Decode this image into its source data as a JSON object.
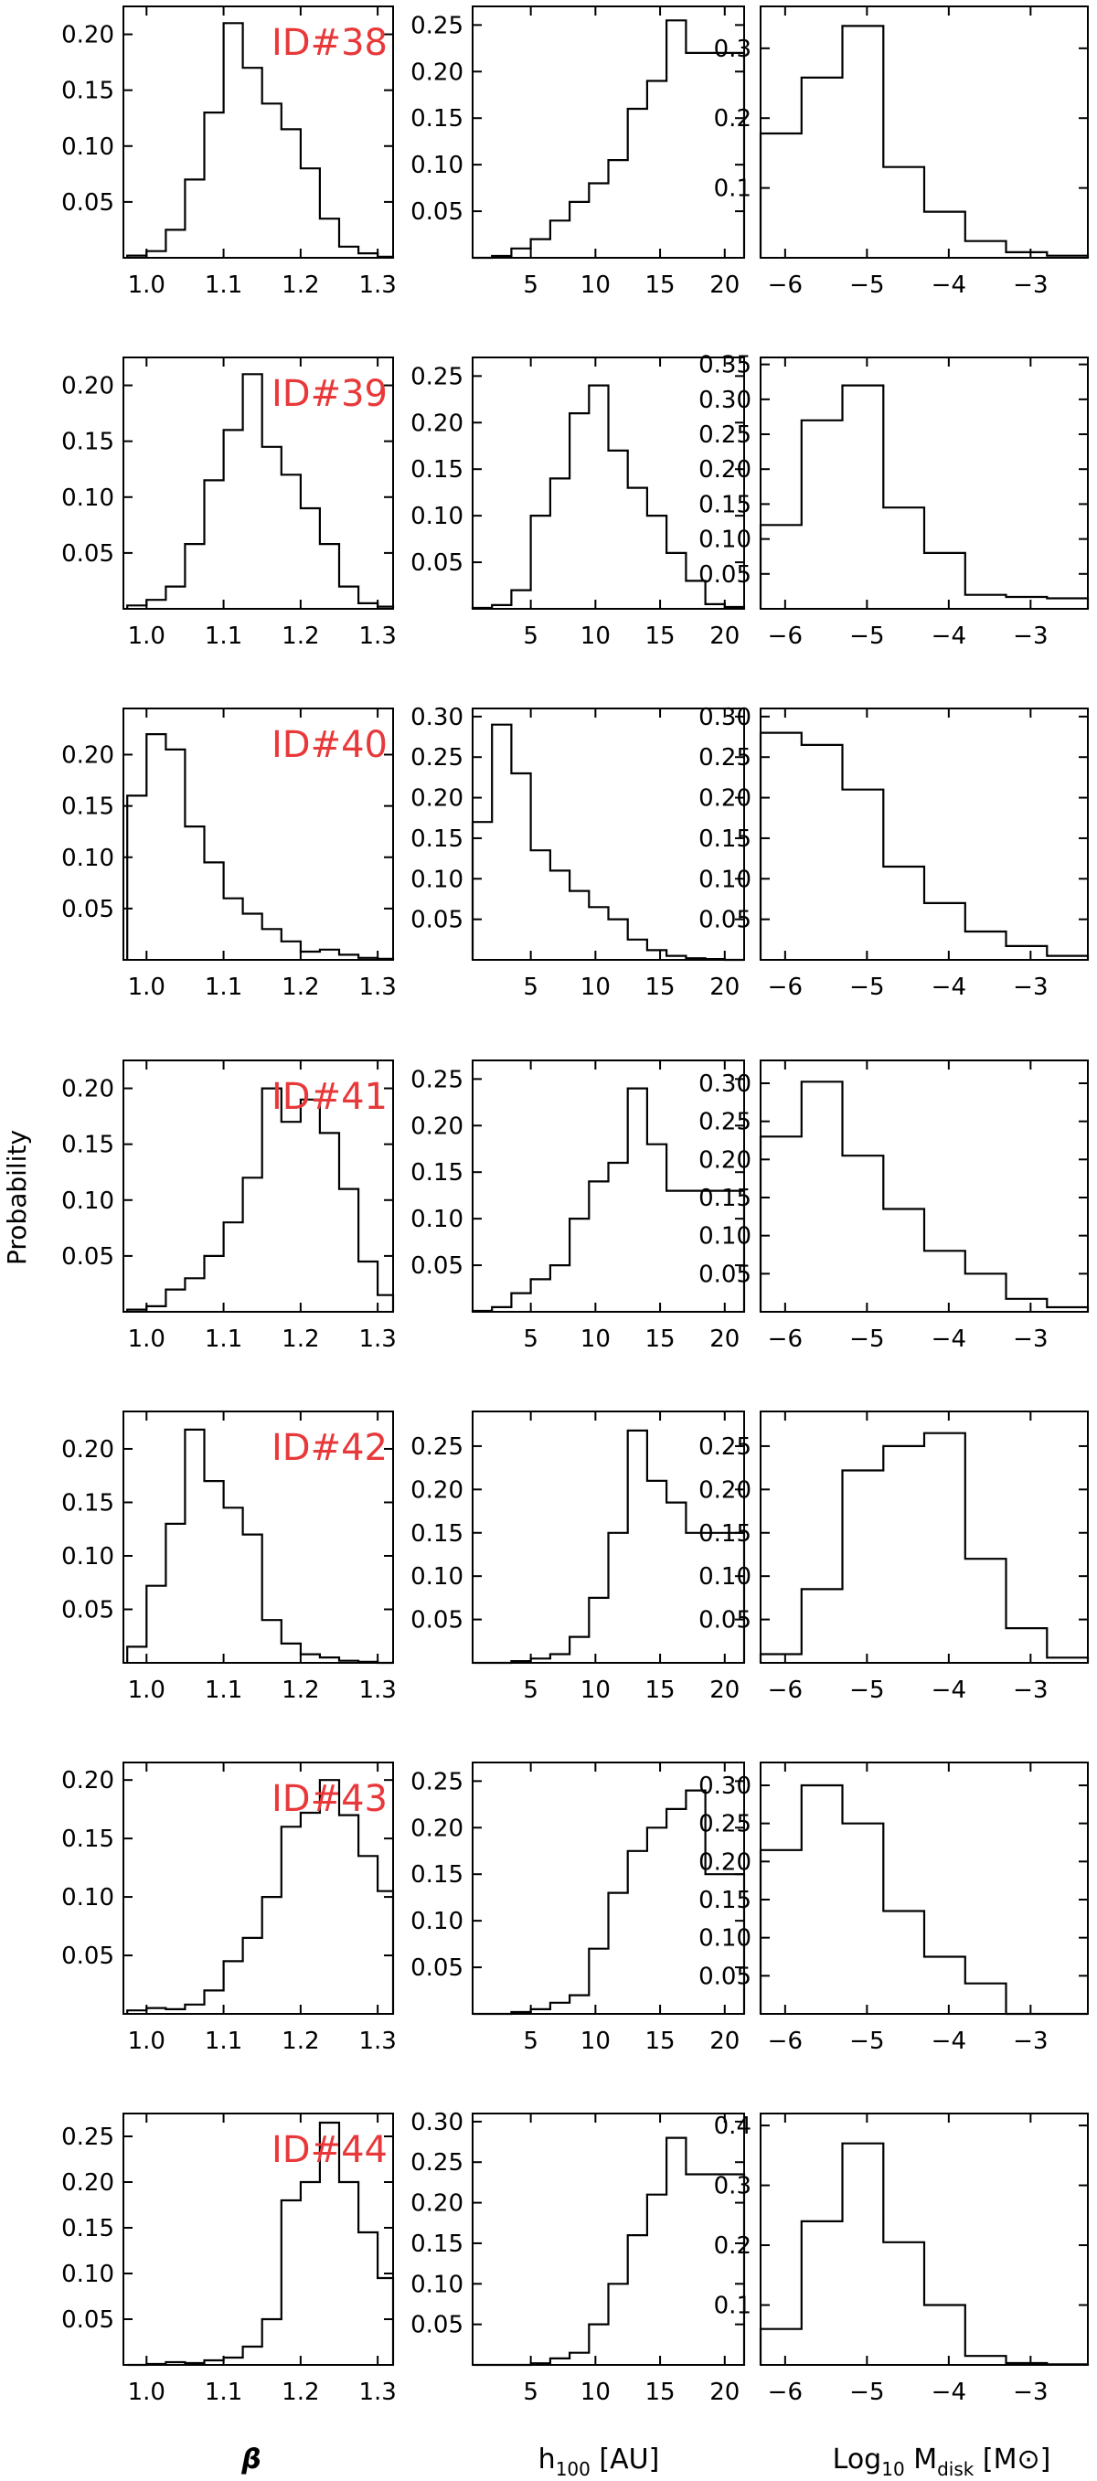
{
  "ylabel": "Probability",
  "xlabels": {
    "beta": "β",
    "h100_main": "h",
    "h100_sub": "100",
    "h100_unit": " [AU]",
    "mdisk_pre": "Log",
    "mdisk_pre_sub": "10",
    "mdisk_main": " M",
    "mdisk_sub": "disk",
    "mdisk_unit": " [M⊙]"
  },
  "chart_data": {
    "type": "bar",
    "columns": [
      {
        "key": "beta",
        "xlim": [
          0.97,
          1.32
        ],
        "xticks": [
          1.0,
          1.1,
          1.2,
          1.3
        ],
        "xtick_labels": [
          "1.0",
          "1.1",
          "1.2",
          "1.3"
        ],
        "bin_edges": [
          0.975,
          1.0,
          1.025,
          1.05,
          1.075,
          1.1,
          1.125,
          1.15,
          1.175,
          1.2,
          1.225,
          1.25,
          1.275,
          1.3,
          1.32
        ]
      },
      {
        "key": "h100",
        "xlim": [
          0.5,
          21.5
        ],
        "xticks": [
          5,
          10,
          15,
          20
        ],
        "xtick_labels": [
          "5",
          "10",
          "15",
          "20"
        ],
        "bin_edges": [
          0.5,
          2.0,
          3.5,
          5.0,
          6.5,
          8.0,
          9.5,
          11.0,
          12.5,
          14.0,
          15.5,
          17.0,
          18.5,
          20.0,
          21.5
        ]
      },
      {
        "key": "mdisk",
        "xlim": [
          -6.3,
          -2.3
        ],
        "xticks": [
          -6,
          -5,
          -4,
          -3
        ],
        "xtick_labels": [
          "−6",
          "−5",
          "−4",
          "−3"
        ],
        "bin_edges": [
          -6.3,
          -5.8,
          -5.3,
          -4.8,
          -4.3,
          -3.8,
          -3.3,
          -2.8,
          -2.3
        ]
      }
    ],
    "rows": [
      {
        "id": "ID#38",
        "panels": [
          {
            "ylim": [
              0,
              0.225
            ],
            "yticks": [
              0.05,
              0.1,
              0.15,
              0.2
            ],
            "ytick_labels": [
              "0.05",
              "0.10",
              "0.15",
              "0.20"
            ],
            "values": [
              0.002,
              0.006,
              0.025,
              0.07,
              0.13,
              0.21,
              0.17,
              0.138,
              0.115,
              0.08,
              0.035,
              0.01,
              0.004,
              0.001
            ]
          },
          {
            "ylim": [
              0,
              0.27
            ],
            "yticks": [
              0.05,
              0.1,
              0.15,
              0.2,
              0.25
            ],
            "ytick_labels": [
              "0.05",
              "0.10",
              "0.15",
              "0.20",
              "0.25"
            ],
            "values": [
              0.0,
              0.002,
              0.01,
              0.02,
              0.04,
              0.06,
              0.08,
              0.105,
              0.16,
              0.19,
              0.255,
              0.22,
              0.22,
              0.22
            ]
          },
          {
            "ylim": [
              0,
              0.36
            ],
            "yticks": [
              0.1,
              0.2,
              0.3
            ],
            "ytick_labels": [
              "0.1",
              "0.2",
              "0.3"
            ],
            "values": [
              0.178,
              0.258,
              0.332,
              0.13,
              0.066,
              0.024,
              0.008,
              0.003
            ]
          }
        ]
      },
      {
        "id": "ID#39",
        "panels": [
          {
            "ylim": [
              0,
              0.225
            ],
            "yticks": [
              0.05,
              0.1,
              0.15,
              0.2
            ],
            "ytick_labels": [
              "0.05",
              "0.10",
              "0.15",
              "0.20"
            ],
            "values": [
              0.003,
              0.008,
              0.02,
              0.058,
              0.115,
              0.16,
              0.21,
              0.145,
              0.12,
              0.09,
              0.058,
              0.02,
              0.005,
              0.002
            ]
          },
          {
            "ylim": [
              0,
              0.27
            ],
            "yticks": [
              0.05,
              0.1,
              0.15,
              0.2,
              0.25
            ],
            "ytick_labels": [
              "0.05",
              "0.10",
              "0.15",
              "0.20",
              "0.25"
            ],
            "values": [
              0.001,
              0.004,
              0.02,
              0.1,
              0.14,
              0.21,
              0.24,
              0.17,
              0.13,
              0.1,
              0.06,
              0.03,
              0.005,
              0.002
            ]
          },
          {
            "ylim": [
              0,
              0.36
            ],
            "yticks": [
              0.05,
              0.1,
              0.15,
              0.2,
              0.25,
              0.3,
              0.35
            ],
            "ytick_labels": [
              "0.05",
              "0.10",
              "0.15",
              "0.20",
              "0.25",
              "0.30",
              "0.35"
            ],
            "values": [
              0.12,
              0.27,
              0.32,
              0.145,
              0.08,
              0.02,
              0.017,
              0.015
            ]
          }
        ]
      },
      {
        "id": "ID#40",
        "panels": [
          {
            "ylim": [
              0,
              0.245
            ],
            "yticks": [
              0.05,
              0.1,
              0.15,
              0.2
            ],
            "ytick_labels": [
              "0.05",
              "0.10",
              "0.15",
              "0.20"
            ],
            "values": [
              0.16,
              0.22,
              0.205,
              0.13,
              0.095,
              0.06,
              0.045,
              0.03,
              0.018,
              0.008,
              0.01,
              0.005,
              0.002,
              0.001
            ]
          },
          {
            "ylim": [
              0,
              0.31
            ],
            "yticks": [
              0.05,
              0.1,
              0.15,
              0.2,
              0.25,
              0.3
            ],
            "ytick_labels": [
              "0.05",
              "0.10",
              "0.15",
              "0.20",
              "0.25",
              "0.30"
            ],
            "values": [
              0.17,
              0.29,
              0.23,
              0.135,
              0.11,
              0.085,
              0.065,
              0.05,
              0.025,
              0.012,
              0.005,
              0.002,
              0.001,
              0.0
            ]
          },
          {
            "ylim": [
              0,
              0.31
            ],
            "yticks": [
              0.05,
              0.1,
              0.15,
              0.2,
              0.25,
              0.3
            ],
            "ytick_labels": [
              "0.05",
              "0.10",
              "0.15",
              "0.20",
              "0.25",
              "0.30"
            ],
            "values": [
              0.28,
              0.265,
              0.21,
              0.115,
              0.07,
              0.035,
              0.017,
              0.005
            ]
          }
        ]
      },
      {
        "id": "ID#41",
        "panels": [
          {
            "ylim": [
              0,
              0.225
            ],
            "yticks": [
              0.05,
              0.1,
              0.15,
              0.2
            ],
            "ytick_labels": [
              "0.05",
              "0.10",
              "0.15",
              "0.20"
            ],
            "values": [
              0.002,
              0.005,
              0.02,
              0.03,
              0.05,
              0.08,
              0.12,
              0.2,
              0.17,
              0.19,
              0.16,
              0.11,
              0.045,
              0.015
            ]
          },
          {
            "ylim": [
              0,
              0.27
            ],
            "yticks": [
              0.05,
              0.1,
              0.15,
              0.2,
              0.25
            ],
            "ytick_labels": [
              "0.05",
              "0.10",
              "0.15",
              "0.20",
              "0.25"
            ],
            "values": [
              0.001,
              0.005,
              0.02,
              0.035,
              0.05,
              0.1,
              0.14,
              0.16,
              0.24,
              0.18,
              0.13,
              0.13,
              0.13,
              0.13
            ]
          },
          {
            "ylim": [
              0,
              0.33
            ],
            "yticks": [
              0.05,
              0.1,
              0.15,
              0.2,
              0.25,
              0.3
            ],
            "ytick_labels": [
              "0.05",
              "0.10",
              "0.15",
              "0.20",
              "0.25",
              "0.30"
            ],
            "values": [
              0.23,
              0.302,
              0.205,
              0.135,
              0.08,
              0.05,
              0.017,
              0.006
            ]
          }
        ]
      },
      {
        "id": "ID#42",
        "panels": [
          {
            "ylim": [
              0,
              0.235
            ],
            "yticks": [
              0.05,
              0.1,
              0.15,
              0.2
            ],
            "ytick_labels": [
              "0.05",
              "0.10",
              "0.15",
              "0.20"
            ],
            "values": [
              0.015,
              0.072,
              0.13,
              0.218,
              0.17,
              0.145,
              0.12,
              0.04,
              0.018,
              0.008,
              0.005,
              0.002,
              0.001,
              0.0
            ]
          },
          {
            "ylim": [
              0,
              0.29
            ],
            "yticks": [
              0.05,
              0.1,
              0.15,
              0.2,
              0.25
            ],
            "ytick_labels": [
              "0.05",
              "0.10",
              "0.15",
              "0.20",
              "0.25"
            ],
            "values": [
              0.0,
              0.0,
              0.002,
              0.005,
              0.01,
              0.03,
              0.075,
              0.15,
              0.268,
              0.21,
              0.185,
              0.15,
              0.15,
              0.15
            ]
          },
          {
            "ylim": [
              0,
              0.29
            ],
            "yticks": [
              0.05,
              0.1,
              0.15,
              0.2,
              0.25
            ],
            "ytick_labels": [
              "0.05",
              "0.10",
              "0.15",
              "0.20",
              "0.25"
            ],
            "values": [
              0.01,
              0.085,
              0.222,
              0.25,
              0.265,
              0.12,
              0.04,
              0.006
            ]
          }
        ]
      },
      {
        "id": "ID#43",
        "panels": [
          {
            "ylim": [
              0,
              0.215
            ],
            "yticks": [
              0.05,
              0.1,
              0.15,
              0.2
            ],
            "ytick_labels": [
              "0.05",
              "0.10",
              "0.15",
              "0.20"
            ],
            "values": [
              0.003,
              0.005,
              0.004,
              0.008,
              0.02,
              0.045,
              0.065,
              0.1,
              0.16,
              0.172,
              0.2,
              0.17,
              0.135,
              0.105
            ]
          },
          {
            "ylim": [
              0,
              0.27
            ],
            "yticks": [
              0.05,
              0.1,
              0.15,
              0.2,
              0.25
            ],
            "ytick_labels": [
              "0.05",
              "0.10",
              "0.15",
              "0.20",
              "0.25"
            ],
            "values": [
              0.0,
              0.0,
              0.002,
              0.005,
              0.012,
              0.02,
              0.07,
              0.13,
              0.175,
              0.2,
              0.22,
              0.24,
              0.15,
              0.15
            ]
          },
          {
            "ylim": [
              0,
              0.33
            ],
            "yticks": [
              0.05,
              0.1,
              0.15,
              0.2,
              0.25,
              0.3
            ],
            "ytick_labels": [
              "0.05",
              "0.10",
              "0.15",
              "0.20",
              "0.25",
              "0.30"
            ],
            "values": [
              0.215,
              0.3,
              0.25,
              0.135,
              0.075,
              0.04,
              0.0,
              0.0
            ]
          }
        ]
      },
      {
        "id": "ID#44",
        "panels": [
          {
            "ylim": [
              0,
              0.275
            ],
            "yticks": [
              0.05,
              0.1,
              0.15,
              0.2,
              0.25
            ],
            "ytick_labels": [
              "0.05",
              "0.10",
              "0.15",
              "0.20",
              "0.25"
            ],
            "values": [
              0.0,
              0.001,
              0.003,
              0.002,
              0.005,
              0.008,
              0.02,
              0.05,
              0.18,
              0.2,
              0.265,
              0.2,
              0.145,
              0.095
            ]
          },
          {
            "ylim": [
              0,
              0.31
            ],
            "yticks": [
              0.05,
              0.1,
              0.15,
              0.2,
              0.25,
              0.3
            ],
            "ytick_labels": [
              "0.05",
              "0.10",
              "0.15",
              "0.20",
              "0.25",
              "0.30"
            ],
            "values": [
              0.0,
              0.0,
              0.0,
              0.002,
              0.008,
              0.015,
              0.05,
              0.1,
              0.16,
              0.21,
              0.28,
              0.235,
              0.235,
              0.235
            ]
          },
          {
            "ylim": [
              0,
              0.42
            ],
            "yticks": [
              0.1,
              0.2,
              0.3,
              0.4
            ],
            "ytick_labels": [
              "0.1",
              "0.2",
              "0.3",
              "0.4"
            ],
            "values": [
              0.06,
              0.24,
              0.37,
              0.205,
              0.1,
              0.015,
              0.003,
              0.001
            ]
          }
        ]
      }
    ]
  }
}
